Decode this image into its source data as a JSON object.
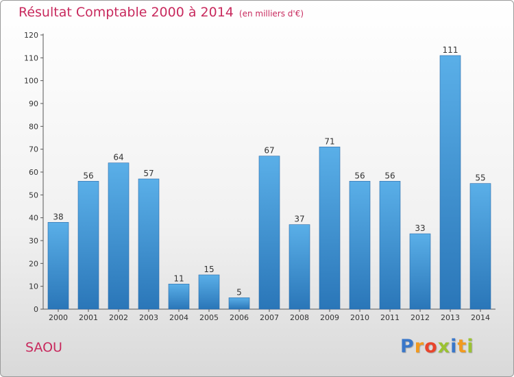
{
  "chart_data": {
    "type": "bar",
    "title": "Résultat Comptable 2000 à 2014",
    "subtitle": "(en milliers d'€)",
    "categories": [
      "2000",
      "2001",
      "2002",
      "2003",
      "2004",
      "2005",
      "2006",
      "2007",
      "2008",
      "2009",
      "2010",
      "2011",
      "2012",
      "2013",
      "2014"
    ],
    "values": [
      38,
      56,
      64,
      57,
      11,
      15,
      5,
      67,
      37,
      71,
      56,
      56,
      33,
      111,
      55
    ],
    "ylim": [
      0,
      120
    ],
    "yticks": [
      0,
      10,
      20,
      30,
      40,
      50,
      60,
      70,
      80,
      90,
      100,
      110,
      120
    ],
    "xlabel": "",
    "ylabel": "",
    "grid": false,
    "bar_color": "#3d8fd3"
  },
  "commune": "SAOU",
  "logo": {
    "letters": [
      "P",
      "r",
      "o",
      "x",
      "i",
      "t",
      "i"
    ],
    "colors": [
      "#3a77c9",
      "#f29a1f",
      "#e8452c",
      "#9bc232",
      "#3a77c9",
      "#f29a1f",
      "#9bc232"
    ]
  }
}
